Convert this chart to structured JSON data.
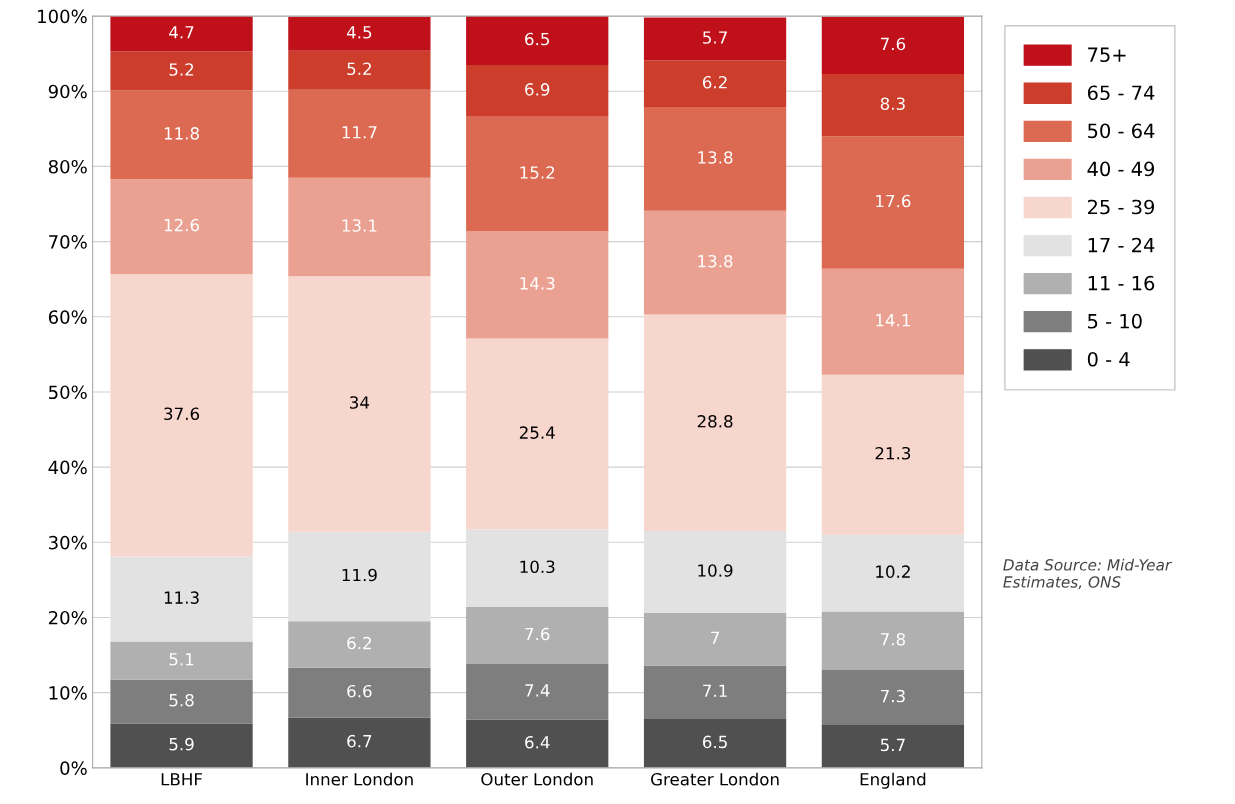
{
  "chart_data": {
    "type": "bar",
    "stacked": true,
    "categories": [
      "LBHF",
      "Inner London",
      "Outer London",
      "Greater London",
      "England"
    ],
    "series": [
      {
        "name": "0 - 4",
        "color": "#505050",
        "values": [
          5.9,
          6.7,
          6.4,
          6.5,
          5.7
        ]
      },
      {
        "name": "5 - 10",
        "color": "#7e7e7e",
        "values": [
          5.8,
          6.6,
          7.4,
          7.1,
          7.3
        ]
      },
      {
        "name": "11 - 16",
        "color": "#b0b0b0",
        "values": [
          5.1,
          6.2,
          7.6,
          7,
          7.8
        ]
      },
      {
        "name": "17 - 24",
        "color": "#e2e2e2",
        "values": [
          11.3,
          11.9,
          10.3,
          10.9,
          10.2
        ]
      },
      {
        "name": "25 - 39",
        "color": "#f7d6cd",
        "values": [
          37.6,
          34,
          25.4,
          28.8,
          21.3
        ]
      },
      {
        "name": "40 - 49",
        "color": "#eba192",
        "values": [
          12.6,
          13.1,
          14.3,
          13.8,
          14.1
        ]
      },
      {
        "name": "50 - 64",
        "color": "#dc6a52",
        "values": [
          11.8,
          11.7,
          15.2,
          13.8,
          17.6
        ]
      },
      {
        "name": "65 - 74",
        "color": "#cc3d2c",
        "values": [
          5.2,
          5.2,
          6.9,
          6.2,
          8.3
        ]
      },
      {
        "name": "75+",
        "color": "#c0111b",
        "values": [
          4.7,
          4.5,
          6.5,
          5.7,
          7.6
        ]
      }
    ],
    "ylim": [
      0,
      100
    ],
    "yticks": [
      {
        "value": 0,
        "label": "0%"
      },
      {
        "value": 10,
        "label": "10%"
      },
      {
        "value": 20,
        "label": "20%"
      },
      {
        "value": 30,
        "label": "30%"
      },
      {
        "value": 40,
        "label": "40%"
      },
      {
        "value": 50,
        "label": "50%"
      },
      {
        "value": 60,
        "label": "60%"
      },
      {
        "value": 70,
        "label": "70%"
      },
      {
        "value": 80,
        "label": "80%"
      },
      {
        "value": 90,
        "label": "90%"
      },
      {
        "value": 100,
        "label": "100%"
      }
    ],
    "grid": "y",
    "legend": "right",
    "data_labels": true,
    "annotations": [
      "Data Source: Mid-Year Estimates, ONS"
    ]
  }
}
